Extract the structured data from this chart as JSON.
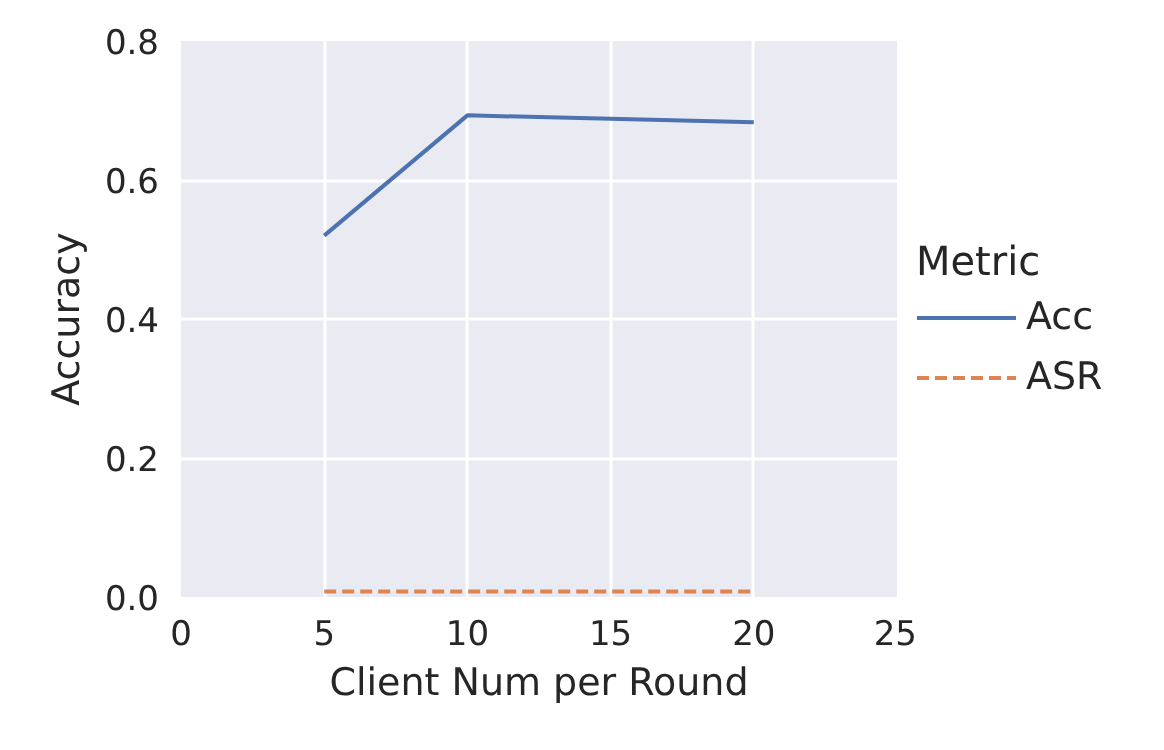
{
  "chart_data": {
    "type": "line",
    "xlabel": "Client Num per Round",
    "ylabel": "Accuracy",
    "legend_title": "Metric",
    "legend": "right",
    "grid": true,
    "x": [
      5,
      10,
      20
    ],
    "xlim": [
      0,
      25
    ],
    "xticks": [
      0,
      5,
      10,
      15,
      20,
      25
    ],
    "ylim": [
      0,
      0.8
    ],
    "yticks": [
      {
        "value": 0,
        "label": "0.0"
      },
      {
        "value": 0.2,
        "label": "0.2"
      },
      {
        "value": 0.4,
        "label": "0.4"
      },
      {
        "value": 0.6,
        "label": "0.6"
      },
      {
        "value": 0.8,
        "label": "0.8"
      }
    ],
    "series": [
      {
        "name": "Acc",
        "color": "#4c72b0",
        "line_style": "solid",
        "values": [
          0.52,
          0.693,
          0.683
        ]
      },
      {
        "name": "ASR",
        "color": "#dd8452",
        "line_style": "dashed",
        "values": [
          0.008,
          0.008,
          0.008
        ]
      }
    ]
  }
}
